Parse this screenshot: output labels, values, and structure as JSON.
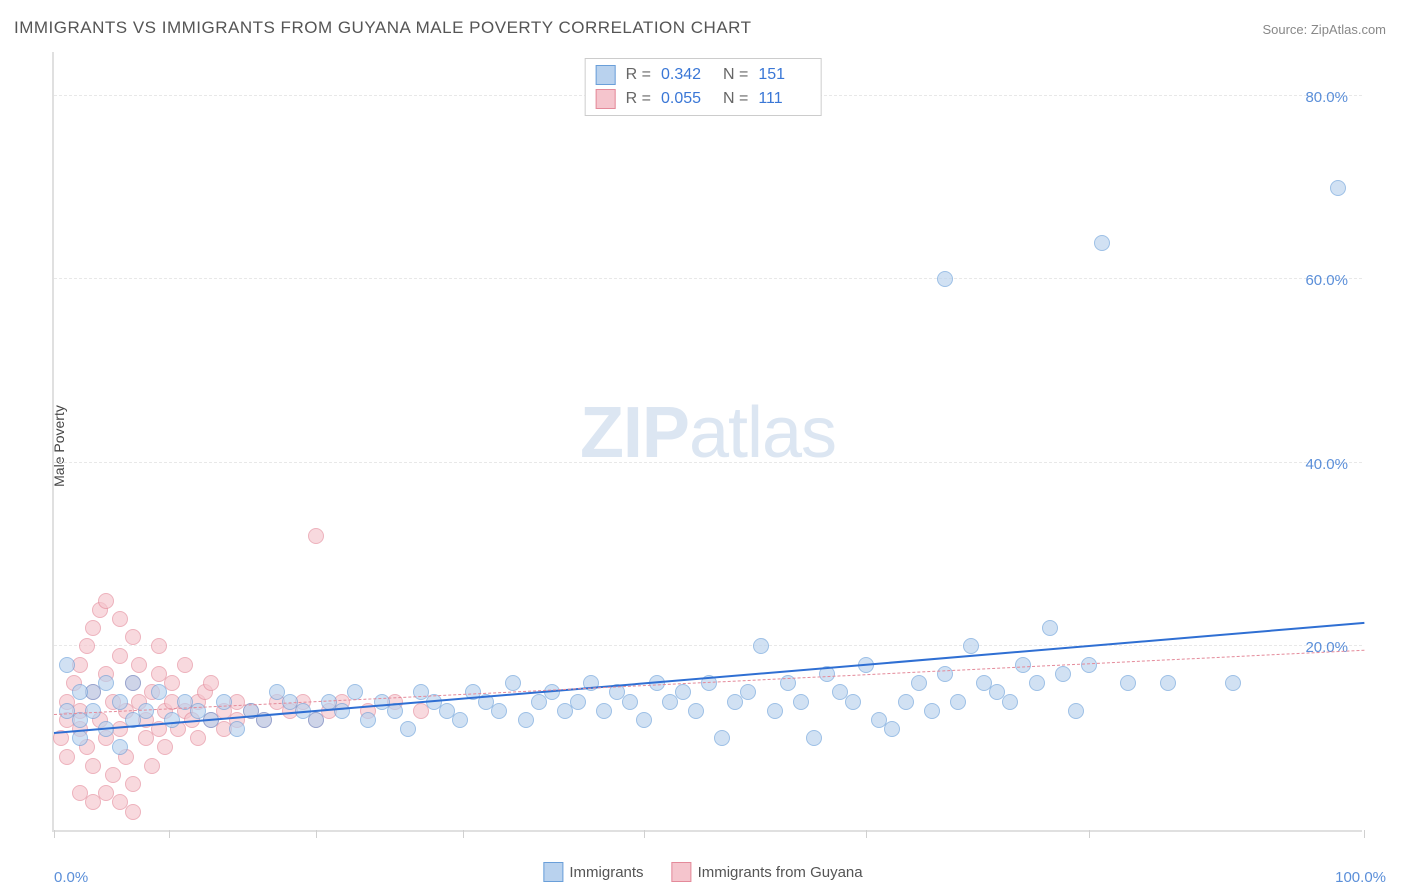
{
  "title": "IMMIGRANTS VS IMMIGRANTS FROM GUYANA MALE POVERTY CORRELATION CHART",
  "source_label": "Source: ZipAtlas.com",
  "watermark_bold": "ZIP",
  "watermark_rest": "atlas",
  "ylabel": "Male Poverty",
  "xaxis_min_label": "0.0%",
  "xaxis_max_label": "100.0%",
  "chart": {
    "type": "scatter",
    "xlim": [
      0,
      100
    ],
    "ylim": [
      0,
      85
    ],
    "yticks": [
      20,
      40,
      60,
      80
    ],
    "ytick_labels": [
      "20.0%",
      "40.0%",
      "60.0%",
      "80.0%"
    ],
    "xtick_positions": [
      0,
      8.8,
      20,
      31.2,
      45,
      62,
      79,
      100
    ],
    "grid_color": "#e8e8e8",
    "background_color": "#ffffff",
    "axis_color": "#e0e0e0",
    "point_radius": 8,
    "series": [
      {
        "name": "Immigrants",
        "fill_color": "#b9d2ee",
        "stroke_color": "#6a9fd9",
        "fill_opacity": 0.65,
        "R": "0.342",
        "N": "151",
        "trend": {
          "x1": 0,
          "y1": 10.5,
          "x2": 100,
          "y2": 22.5,
          "color": "#2f6fd3",
          "width": 2.5,
          "dash": "solid"
        },
        "points": [
          [
            2,
            12
          ],
          [
            3,
            13
          ],
          [
            4,
            11
          ],
          [
            5,
            14
          ],
          [
            6,
            12
          ],
          [
            7,
            13
          ],
          [
            8,
            15
          ],
          [
            9,
            12
          ],
          [
            10,
            14
          ],
          [
            11,
            13
          ],
          [
            12,
            12
          ],
          [
            13,
            14
          ],
          [
            14,
            11
          ],
          [
            15,
            13
          ],
          [
            16,
            12
          ],
          [
            17,
            15
          ],
          [
            18,
            14
          ],
          [
            19,
            13
          ],
          [
            20,
            12
          ],
          [
            21,
            14
          ],
          [
            22,
            13
          ],
          [
            23,
            15
          ],
          [
            24,
            12
          ],
          [
            25,
            14
          ],
          [
            26,
            13
          ],
          [
            27,
            11
          ],
          [
            28,
            15
          ],
          [
            29,
            14
          ],
          [
            30,
            13
          ],
          [
            31,
            12
          ],
          [
            32,
            15
          ],
          [
            33,
            14
          ],
          [
            34,
            13
          ],
          [
            35,
            16
          ],
          [
            36,
            12
          ],
          [
            37,
            14
          ],
          [
            38,
            15
          ],
          [
            39,
            13
          ],
          [
            40,
            14
          ],
          [
            41,
            16
          ],
          [
            42,
            13
          ],
          [
            43,
            15
          ],
          [
            44,
            14
          ],
          [
            45,
            12
          ],
          [
            46,
            16
          ],
          [
            47,
            14
          ],
          [
            48,
            15
          ],
          [
            49,
            13
          ],
          [
            50,
            16
          ],
          [
            51,
            10
          ],
          [
            52,
            14
          ],
          [
            53,
            15
          ],
          [
            54,
            20
          ],
          [
            55,
            13
          ],
          [
            56,
            16
          ],
          [
            57,
            14
          ],
          [
            58,
            10
          ],
          [
            59,
            17
          ],
          [
            60,
            15
          ],
          [
            61,
            14
          ],
          [
            62,
            18
          ],
          [
            63,
            12
          ],
          [
            64,
            11
          ],
          [
            65,
            14
          ],
          [
            66,
            16
          ],
          [
            67,
            13
          ],
          [
            68,
            17
          ],
          [
            69,
            14
          ],
          [
            70,
            20
          ],
          [
            71,
            16
          ],
          [
            72,
            15
          ],
          [
            73,
            14
          ],
          [
            74,
            18
          ],
          [
            75,
            16
          ],
          [
            76,
            22
          ],
          [
            77,
            17
          ],
          [
            78,
            13
          ],
          [
            79,
            18
          ],
          [
            82,
            16
          ],
          [
            85,
            16
          ],
          [
            90,
            16
          ],
          [
            68,
            60
          ],
          [
            80,
            64
          ],
          [
            98,
            70
          ],
          [
            1,
            18
          ],
          [
            2,
            10
          ],
          [
            3,
            15
          ],
          [
            4,
            16
          ],
          [
            5,
            9
          ],
          [
            6,
            16
          ],
          [
            1,
            13
          ],
          [
            2,
            15
          ]
        ]
      },
      {
        "name": "Immigrants from Guyana",
        "fill_color": "#f5c5cd",
        "stroke_color": "#e48a9a",
        "fill_opacity": 0.65,
        "R": "0.055",
        "N": "111",
        "trend": {
          "x1": 0,
          "y1": 12.5,
          "x2": 100,
          "y2": 19.5,
          "color": "#e48a9a",
          "width": 1.2,
          "dash": "dashed"
        },
        "points": [
          [
            0.5,
            10
          ],
          [
            1,
            12
          ],
          [
            1,
            14
          ],
          [
            1,
            8
          ],
          [
            1.5,
            16
          ],
          [
            2,
            18
          ],
          [
            2,
            11
          ],
          [
            2,
            13
          ],
          [
            2.5,
            20
          ],
          [
            2.5,
            9
          ],
          [
            3,
            22
          ],
          [
            3,
            15
          ],
          [
            3,
            7
          ],
          [
            3.5,
            24
          ],
          [
            3.5,
            12
          ],
          [
            4,
            17
          ],
          [
            4,
            10
          ],
          [
            4,
            25
          ],
          [
            4.5,
            14
          ],
          [
            4.5,
            6
          ],
          [
            5,
            19
          ],
          [
            5,
            11
          ],
          [
            5,
            23
          ],
          [
            5.5,
            13
          ],
          [
            5.5,
            8
          ],
          [
            6,
            16
          ],
          [
            6,
            21
          ],
          [
            6,
            5
          ],
          [
            6.5,
            14
          ],
          [
            6.5,
            18
          ],
          [
            7,
            10
          ],
          [
            7,
            12
          ],
          [
            7.5,
            15
          ],
          [
            7.5,
            7
          ],
          [
            8,
            17
          ],
          [
            8,
            11
          ],
          [
            8,
            20
          ],
          [
            8.5,
            13
          ],
          [
            8.5,
            9
          ],
          [
            9,
            14
          ],
          [
            9,
            16
          ],
          [
            9.5,
            11
          ],
          [
            10,
            13
          ],
          [
            10,
            18
          ],
          [
            10.5,
            12
          ],
          [
            11,
            14
          ],
          [
            11,
            10
          ],
          [
            11.5,
            15
          ],
          [
            12,
            12
          ],
          [
            12,
            16
          ],
          [
            13,
            13
          ],
          [
            13,
            11
          ],
          [
            14,
            14
          ],
          [
            14,
            12
          ],
          [
            15,
            13
          ],
          [
            16,
            12
          ],
          [
            17,
            14
          ],
          [
            18,
            13
          ],
          [
            19,
            14
          ],
          [
            20,
            12
          ],
          [
            21,
            13
          ],
          [
            22,
            14
          ],
          [
            24,
            13
          ],
          [
            26,
            14
          ],
          [
            28,
            13
          ],
          [
            3,
            3
          ],
          [
            5,
            3
          ],
          [
            6,
            2
          ],
          [
            4,
            4
          ],
          [
            2,
            4
          ],
          [
            20,
            32
          ]
        ]
      }
    ]
  },
  "legend_top": {
    "r_label": "R =",
    "n_label": "N ="
  },
  "legend_bottom": {
    "items": [
      {
        "label": "Immigrants",
        "swatch_fill": "#b9d2ee",
        "swatch_border": "#6a9fd9"
      },
      {
        "label": "Immigrants from Guyana",
        "swatch_fill": "#f5c5cd",
        "swatch_border": "#e48a9a"
      }
    ]
  }
}
